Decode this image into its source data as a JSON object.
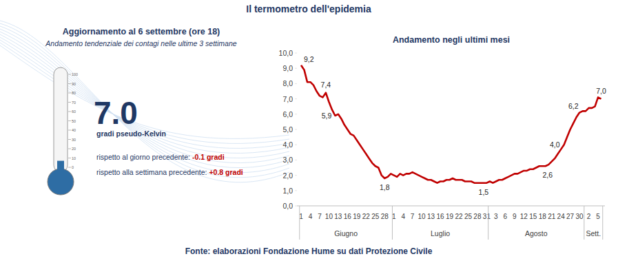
{
  "title": "Il termometro dell'epidemia",
  "source": "Fonte: elaborazioni Fondazione Hume su dati Protezione Civile",
  "chart_data": [
    {
      "type": "thermometer",
      "title": "Aggiornamento al 6 settembre (ore 18)",
      "subtitle": "Andamento tendenziale dei contagi nelle ultime 3 settimane",
      "values": [
        7
      ],
      "value_labels": [
        "7.0"
      ],
      "unit": "gradi pseudo-Kelvin",
      "color": "#2e6da4",
      "ylim": [
        0,
        100
      ],
      "yticks": [
        0,
        10,
        20,
        30,
        40,
        50,
        60,
        70,
        80,
        90,
        100
      ],
      "annotations": [
        {
          "text": "rispetto al giorno precedente: ",
          "change": "-0.1 gradi"
        },
        {
          "text": "rispetto alla settimana precedente: ",
          "change": "+0.8 gradi"
        }
      ]
    },
    {
      "type": "line",
      "title": "Andamento negli ultimi mesi",
      "color": "#c00000",
      "grid": false,
      "categories": [
        "1",
        null,
        null,
        "4",
        null,
        null,
        "7",
        null,
        null,
        "10",
        null,
        null,
        "13",
        null,
        null,
        "16",
        null,
        null,
        "19",
        null,
        null,
        "22",
        null,
        null,
        "25",
        null,
        null,
        "28",
        null,
        null,
        "1",
        null,
        null,
        "4",
        null,
        null,
        "7",
        null,
        null,
        "10",
        null,
        null,
        "13",
        null,
        null,
        "16",
        null,
        null,
        "19",
        null,
        null,
        "22",
        null,
        null,
        "25",
        null,
        null,
        "28",
        null,
        null,
        "31",
        null,
        null,
        "3",
        null,
        null,
        "6",
        null,
        null,
        "9",
        null,
        null,
        "12",
        null,
        null,
        "15",
        null,
        null,
        "18",
        null,
        null,
        "21",
        null,
        null,
        "24",
        null,
        null,
        "27",
        null,
        null,
        "30",
        null,
        null,
        "2",
        null,
        null,
        "5",
        null
      ],
      "groups": [
        {
          "label": "Giugno",
          "count": 30
        },
        {
          "label": "Luglio",
          "count": 31
        },
        {
          "label": "Agosto",
          "count": 31
        },
        {
          "label": "Sett.",
          "count": 6
        }
      ],
      "values": [
        9.2,
        8.9,
        8.1,
        8.1,
        7.9,
        7.5,
        7.2,
        7.1,
        7.4,
        6.8,
        6.3,
        5.9,
        6.0,
        5.7,
        5.3,
        5.0,
        4.7,
        4.6,
        4.3,
        4.0,
        3.7,
        3.4,
        3.1,
        2.8,
        2.6,
        2.5,
        2.0,
        1.8,
        1.9,
        2.1,
        2.0,
        1.9,
        2.1,
        2.0,
        2.1,
        2.1,
        2.2,
        2.1,
        2.0,
        1.9,
        1.8,
        1.7,
        1.7,
        1.6,
        1.5,
        1.6,
        1.6,
        1.7,
        1.7,
        1.8,
        1.7,
        1.7,
        1.7,
        1.6,
        1.6,
        1.6,
        1.5,
        1.5,
        1.5,
        1.5,
        1.5,
        1.6,
        1.5,
        1.6,
        1.7,
        1.7,
        1.8,
        1.9,
        2.0,
        2.1,
        2.1,
        2.2,
        2.3,
        2.3,
        2.4,
        2.4,
        2.5,
        2.6,
        2.6,
        2.6,
        2.7,
        2.9,
        3.1,
        3.4,
        3.7,
        4.0,
        4.5,
        5.0,
        5.4,
        5.8,
        6.1,
        6.2,
        6.2,
        6.4,
        6.4,
        6.5,
        7.1,
        7.0
      ],
      "value_labels": [
        "9,2",
        null,
        null,
        null,
        null,
        null,
        null,
        null,
        "7,4",
        null,
        null,
        "5,9",
        null,
        null,
        null,
        null,
        null,
        null,
        null,
        null,
        null,
        null,
        null,
        null,
        null,
        null,
        null,
        "1,8",
        null,
        null,
        null,
        null,
        null,
        null,
        null,
        null,
        null,
        null,
        null,
        null,
        null,
        null,
        null,
        null,
        null,
        null,
        null,
        null,
        null,
        null,
        null,
        null,
        null,
        null,
        null,
        null,
        null,
        null,
        null,
        "1,5",
        null,
        null,
        null,
        null,
        null,
        null,
        null,
        null,
        null,
        null,
        null,
        null,
        null,
        null,
        null,
        null,
        null,
        null,
        null,
        "2,6",
        null,
        null,
        null,
        null,
        null,
        "4,0",
        null,
        null,
        null,
        null,
        null,
        "6,2",
        null,
        null,
        null,
        null,
        null,
        "7,0"
      ],
      "ylim": [
        0,
        10
      ],
      "yticks": [
        {
          "value": 0,
          "label": "0,0"
        },
        {
          "value": 1,
          "label": "1,0"
        },
        {
          "value": 2,
          "label": "2,0"
        },
        {
          "value": 3,
          "label": "3,0"
        },
        {
          "value": 4,
          "label": "4,0"
        },
        {
          "value": 5,
          "label": "5,0"
        },
        {
          "value": 6,
          "label": "6,0"
        },
        {
          "value": 7,
          "label": "7,0"
        },
        {
          "value": 8,
          "label": "8,0"
        },
        {
          "value": 9,
          "label": "9,0"
        },
        {
          "value": 10,
          "label": "10,0"
        }
      ]
    }
  ]
}
